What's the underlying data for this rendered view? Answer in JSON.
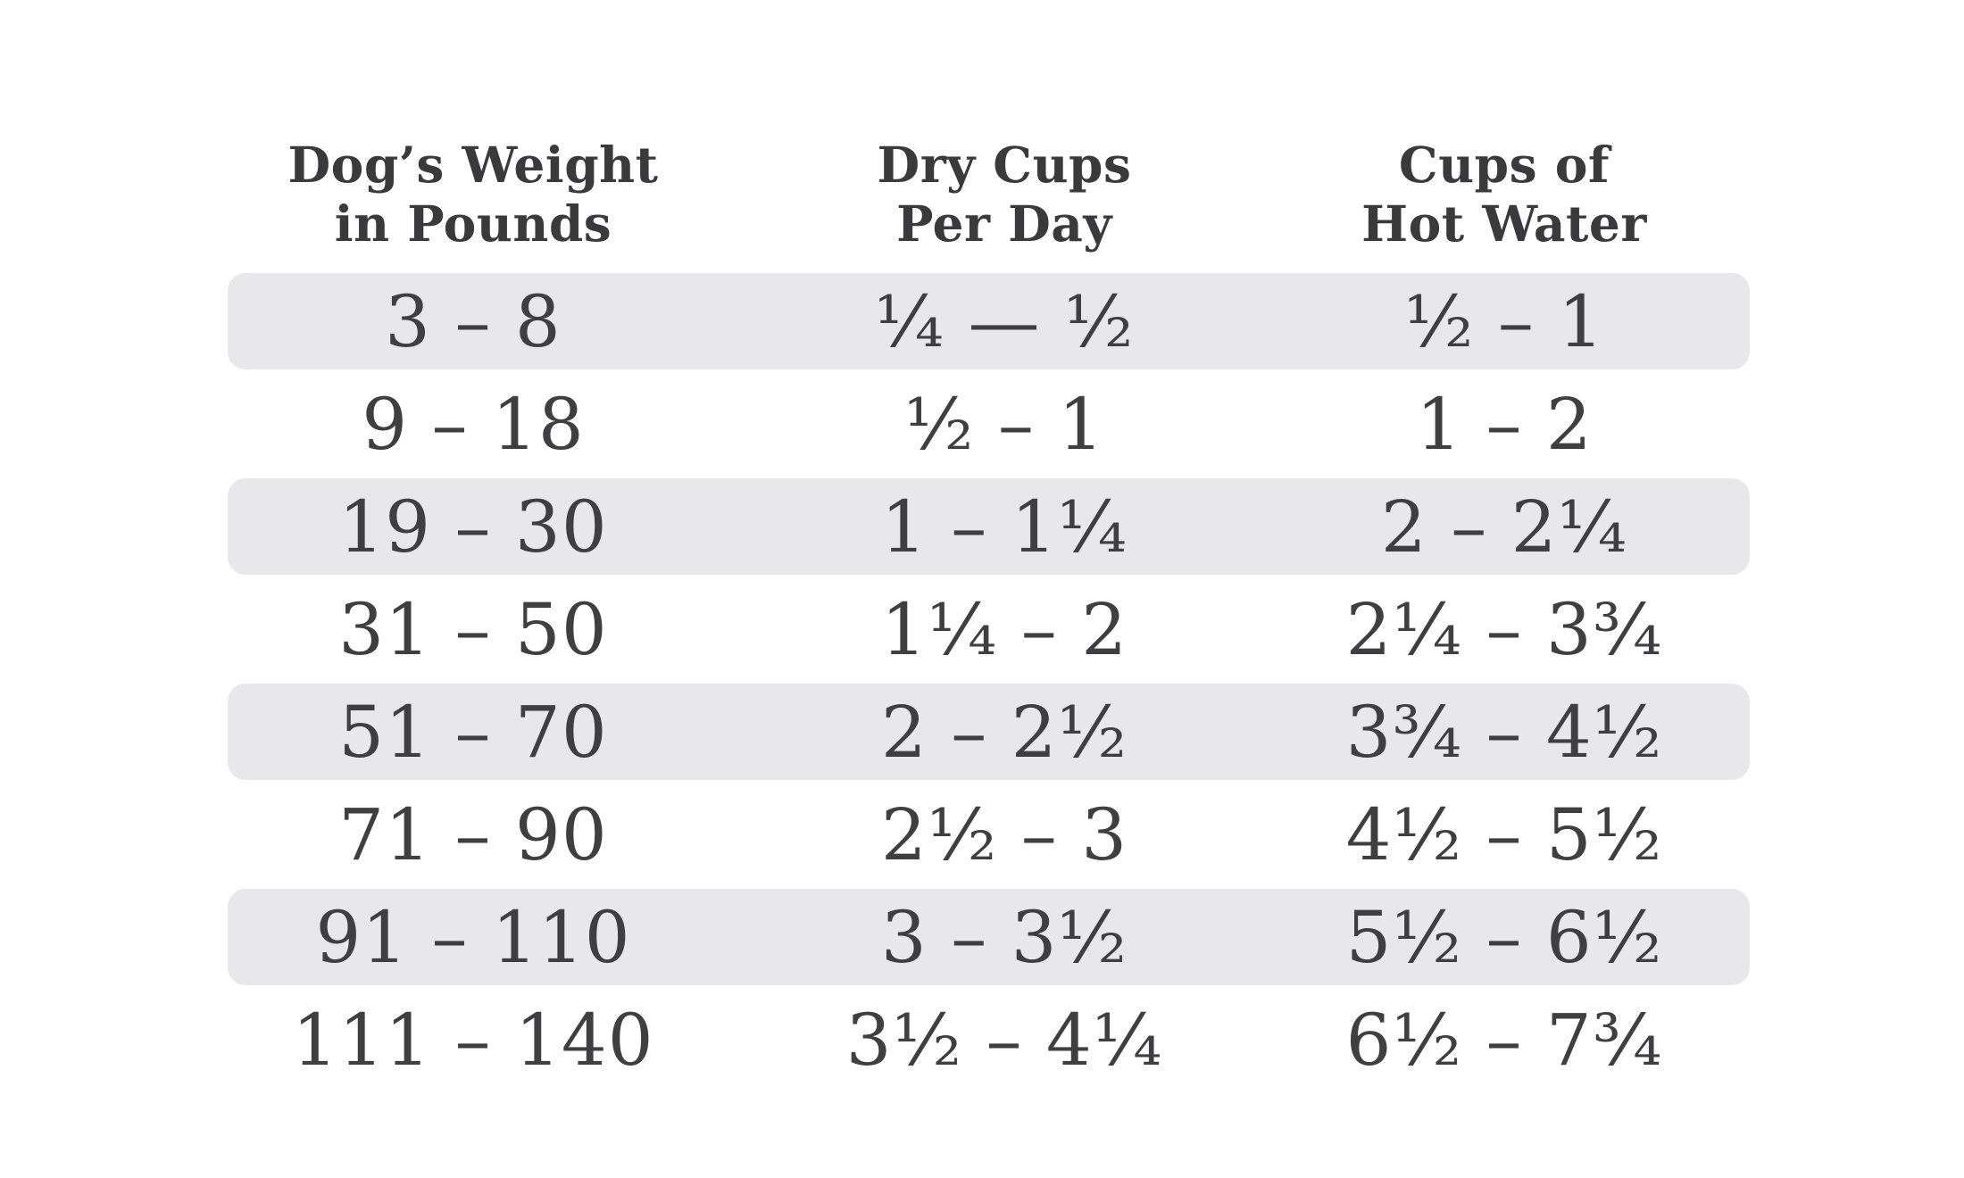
{
  "table": {
    "columns": [
      {
        "id": "weight",
        "title_line1": "Dog’s Weight",
        "title_line2": "in Pounds"
      },
      {
        "id": "dry_cups",
        "title_line1": "Dry Cups",
        "title_line2": "Per Day"
      },
      {
        "id": "hot_water",
        "title_line1": "Cups of",
        "title_line2": "Hot Water"
      }
    ],
    "rows": [
      [
        "3 – 8",
        "¼ — ½",
        "½ – 1"
      ],
      [
        "9 – 18",
        "½ – 1",
        "1 – 2"
      ],
      [
        "19 – 30",
        "1 – 1¼",
        "2 – 2¼"
      ],
      [
        "31 – 50",
        "1¼ – 2",
        "2¼ – 3¾"
      ],
      [
        "51 – 70",
        "2 – 2½",
        "3¾ – 4½"
      ],
      [
        "71 – 90",
        "2½ – 3",
        "4½ – 5½"
      ],
      [
        "91 – 110",
        "3 – 3½",
        "5½ – 6½"
      ],
      [
        "111 – 140",
        "3½ – 4¼",
        "6½ – 7¾"
      ]
    ]
  },
  "colors": {
    "background": "#ffffff",
    "stripe": "#e8e8ea",
    "text": "#3f3f41",
    "header_text": "#3a3a3c"
  },
  "chart_data": {
    "type": "table",
    "columns": [
      "Dog’s Weight in Pounds",
      "Dry Cups Per Day",
      "Cups of Hot Water"
    ],
    "rows": [
      [
        "3 – 8",
        "¼ — ½",
        "½ – 1"
      ],
      [
        "9 – 18",
        "½ – 1",
        "1 – 2"
      ],
      [
        "19 – 30",
        "1 – 1¼",
        "2 – 2¼"
      ],
      [
        "31 – 50",
        "1¼ – 2",
        "2¼ – 3¾"
      ],
      [
        "51 – 70",
        "2 – 2½",
        "3¾ – 4½"
      ],
      [
        "71 – 90",
        "2½ – 3",
        "4½ – 5½"
      ],
      [
        "91 – 110",
        "3 – 3½",
        "5½ – 6½"
      ],
      [
        "111 – 140",
        "3½ – 4¼",
        "6½ – 7¾"
      ]
    ],
    "layout_hints": {
      "striped_rows": "odd rows (1st, 3rd, 5th, 7th) have rounded gray background",
      "alignment": "all cells center-aligned",
      "grid": false
    }
  }
}
